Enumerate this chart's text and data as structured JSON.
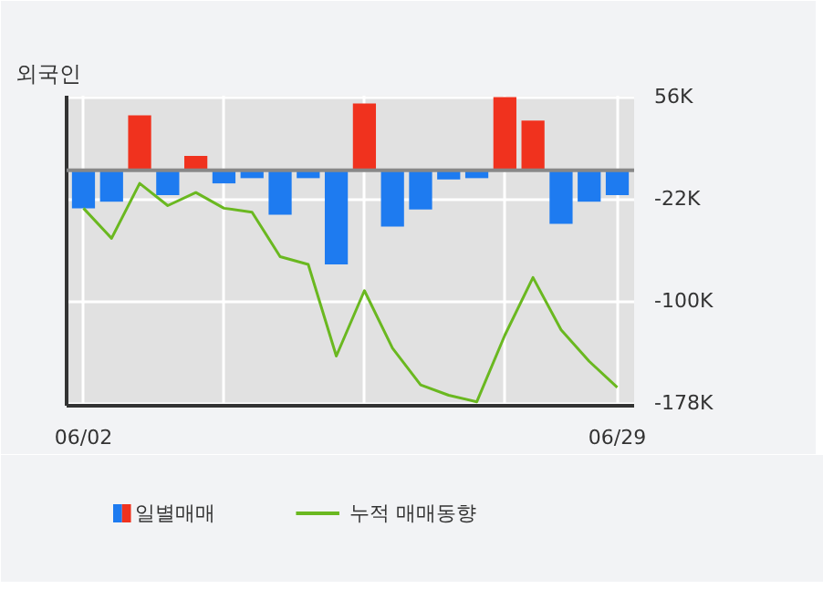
{
  "chart_data": {
    "type": "bar",
    "title": "외국인",
    "categories": [
      "06/02",
      null,
      null,
      null,
      null,
      null,
      null,
      null,
      null,
      null,
      null,
      null,
      null,
      null,
      null,
      null,
      null,
      null,
      null,
      "06/29"
    ],
    "series": [
      {
        "name": "일별매매",
        "colors": [
          "#1e7bf0",
          "#1e7bf0",
          "#f0321e",
          "#1e7bf0",
          "#f0321e",
          "#1e7bf0",
          "#1e7bf0",
          "#1e7bf0",
          "#1e7bf0",
          "#1e7bf0",
          "#f0321e",
          "#1e7bf0",
          "#1e7bf0",
          "#1e7bf0",
          "#1e7bf0",
          "#f0321e",
          "#f0321e",
          "#1e7bf0",
          "#1e7bf0",
          "#1e7bf0"
        ],
        "color": "#1e7bf0",
        "values": [
          -29000,
          -24000,
          42000,
          -19000,
          11000,
          -10000,
          -6000,
          -34000,
          -6000,
          -72000,
          51000,
          -43000,
          -30000,
          -7000,
          -6000,
          56000,
          38000,
          -41000,
          -24000,
          -19000
        ]
      },
      {
        "name": "누적 매매동향",
        "type": "line",
        "color": "#6ab820",
        "values": [
          -29000,
          -52000,
          -10000,
          -27000,
          -17000,
          -29000,
          -32000,
          -66000,
          -72000,
          -142000,
          -92000,
          -136000,
          -164000,
          -172000,
          -177000,
          -126000,
          -82000,
          -122000,
          -146000,
          -166000
        ]
      }
    ],
    "ylim": [
      -180000,
      57000
    ],
    "yticks": [
      {
        "value": 56000,
        "label": "56K"
      },
      {
        "value": -22000,
        "label": "-22K"
      },
      {
        "value": -100000,
        "label": "-100K"
      },
      {
        "value": -178000,
        "label": "-178K"
      }
    ],
    "grid": true,
    "legend": "bottom"
  }
}
